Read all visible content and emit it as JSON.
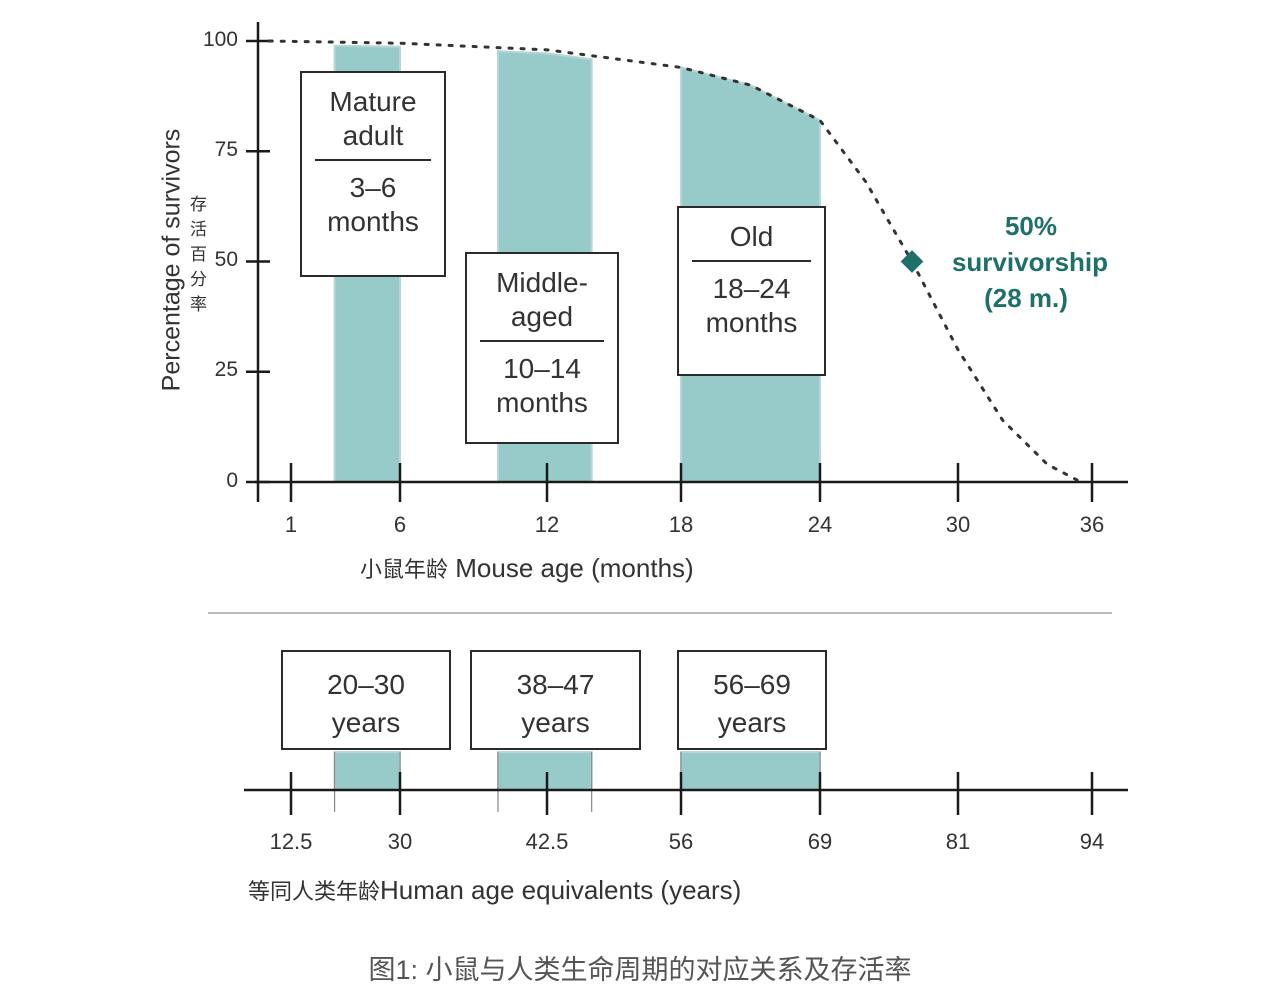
{
  "chart_data": [
    {
      "type": "area",
      "title": "",
      "ylabel": "Percentage of survivors",
      "ylabel_cn": "存活百分率",
      "xlabel": "Mouse age (months)",
      "xlabel_cn": "小鼠年龄",
      "ylim": [
        0,
        100
      ],
      "yticks": [
        "0",
        "25",
        "50",
        "75",
        "100"
      ],
      "xticks": [
        "1",
        "6",
        "12",
        "18",
        "24",
        "30",
        "36"
      ],
      "survival_curve": {
        "x": [
          0,
          6,
          12,
          18,
          21,
          24,
          26,
          28,
          30,
          32,
          34,
          35.5
        ],
        "y": [
          100,
          99.5,
          98,
          94,
          90,
          82,
          68,
          50,
          30,
          14,
          4,
          0
        ]
      },
      "stages": [
        {
          "name": "Mature adult",
          "range_label": "3–6 months",
          "start": 3,
          "end": 6,
          "name_lines": [
            "Mature",
            "adult"
          ],
          "range_lines": [
            "3–6",
            "months"
          ]
        },
        {
          "name": "Middle-aged",
          "range_label": "10–14 months",
          "start": 10,
          "end": 14,
          "name_lines": [
            "Middle-",
            "aged"
          ],
          "range_lines": [
            "10–14",
            "months"
          ]
        },
        {
          "name": "Old",
          "range_label": "18–24 months",
          "start": 18,
          "end": 24,
          "name_lines": [
            "Old"
          ],
          "range_lines": [
            "18–24",
            "months"
          ]
        }
      ],
      "annotation": {
        "x": 28,
        "y": 50,
        "lines": [
          "50%",
          "survivorship",
          "(28 m.)"
        ],
        "color": "#1f6f6b"
      }
    },
    {
      "type": "bar",
      "xlabel": "Human age equivalents (years)",
      "xlabel_cn": "等同人类年龄",
      "xticks": [
        "12.5",
        "30",
        "42.5",
        "56",
        "69",
        "81",
        "94"
      ],
      "ranges": [
        {
          "label_lines": [
            "20–30",
            "years"
          ]
        },
        {
          "label_lines": [
            "38–47",
            "years"
          ]
        },
        {
          "label_lines": [
            "56–69",
            "years"
          ]
        }
      ]
    }
  ],
  "caption": "图1: 小鼠与人类生命周期的对应关系及存活率",
  "colors": {
    "fill": "#96cbca",
    "axis": "#1a1a1a",
    "accent": "#1f6f6b"
  }
}
